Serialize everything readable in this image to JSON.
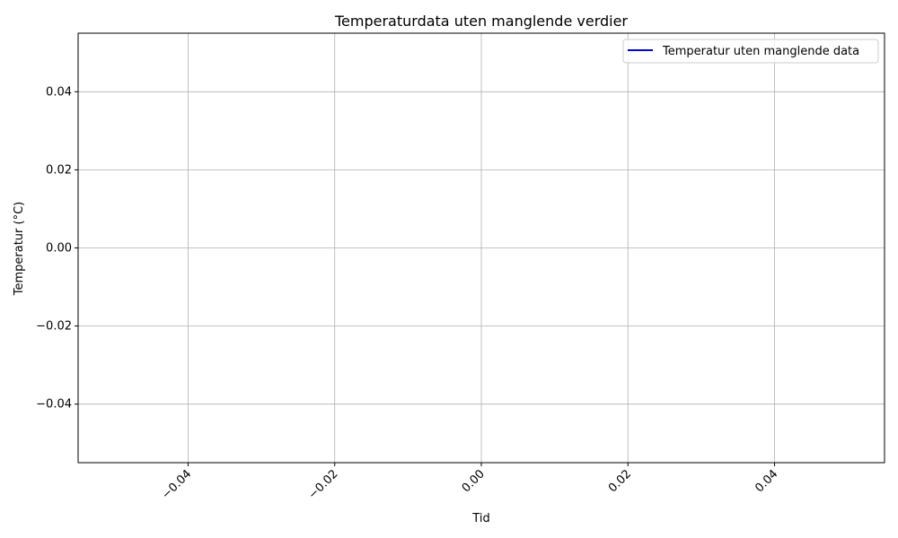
{
  "chart_data": {
    "type": "line",
    "title": "Temperaturdata uten manglende verdier",
    "xlabel": "Tid",
    "ylabel": "Temperatur (°C)",
    "xlim": [
      -0.055,
      0.055
    ],
    "ylim": [
      -0.055,
      0.055
    ],
    "x_ticks": [
      -0.04,
      -0.02,
      0.0,
      0.02,
      0.04
    ],
    "x_tick_labels": [
      "−0.04",
      "−0.02",
      "0.00",
      "0.02",
      "0.04"
    ],
    "y_ticks": [
      0.04,
      0.02,
      0.0,
      -0.02,
      -0.04
    ],
    "y_tick_labels": [
      "0.04",
      "0.02",
      "0.00",
      "−0.02",
      "−0.04"
    ],
    "x_tick_rotation": "45 degrees",
    "grid": true,
    "legend_position": "top-right",
    "series": [
      {
        "name": "Temperatur uten manglende data",
        "color": "#0000cc",
        "x": [],
        "y": []
      }
    ]
  }
}
